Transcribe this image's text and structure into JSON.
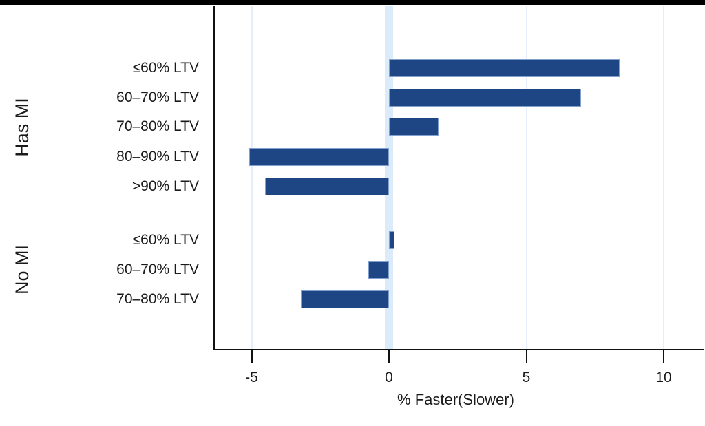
{
  "chart_data": {
    "type": "bar",
    "orientation": "horizontal",
    "title": "",
    "xlabel": "% Faster(Slower)",
    "ylabel": "",
    "xlim": [
      -6.4,
      11.5
    ],
    "grid": true,
    "gridline_values": [
      -5,
      5,
      10
    ],
    "zero_band_value": 0,
    "x_ticks": [
      {
        "value": -5,
        "label": "-5"
      },
      {
        "value": 0,
        "label": "0"
      },
      {
        "value": 5,
        "label": "5"
      },
      {
        "value": 10,
        "label": "10"
      }
    ],
    "groups": [
      {
        "label": "Has MI",
        "bars": [
          {
            "category": "≤60% LTV",
            "value": 8.4
          },
          {
            "category": "60–70% LTV",
            "value": 7.0
          },
          {
            "category": "70–80% LTV",
            "value": 1.8
          },
          {
            "category": "80–90% LTV",
            "value": -5.1
          },
          {
            "category": ">90% LTV",
            "value": -4.5
          }
        ]
      },
      {
        "label": "No MI",
        "bars": [
          {
            "category": "≤60% LTV",
            "value": 0.2
          },
          {
            "category": "60–70% LTV",
            "value": -0.75
          },
          {
            "category": "70–80% LTV",
            "value": -3.2
          }
        ]
      }
    ],
    "colors": {
      "bar_fill": "#1f4684",
      "bar_border": "#82a0cf",
      "gridline": "#e4effb",
      "zero_band": "#dcebf9",
      "axis": "#111111",
      "text": "#1a1a1a",
      "top_bar": "#000000",
      "background": "#ffffff"
    }
  }
}
